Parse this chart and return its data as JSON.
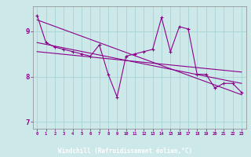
{
  "xlabel": "Windchill (Refroidissement éolien,°C)",
  "x": [
    0,
    1,
    2,
    3,
    4,
    5,
    6,
    7,
    8,
    9,
    10,
    11,
    12,
    13,
    14,
    15,
    16,
    17,
    18,
    19,
    20,
    21,
    22,
    23
  ],
  "line1": [
    9.35,
    8.75,
    8.65,
    8.6,
    8.55,
    8.5,
    8.45,
    8.7,
    8.05,
    7.55,
    8.45,
    8.5,
    8.55,
    8.6,
    9.3,
    8.55,
    9.1,
    9.05,
    8.05,
    8.05,
    7.75,
    7.85,
    7.85,
    7.65
  ],
  "trend1_x": [
    0,
    23
  ],
  "trend1_y": [
    9.25,
    7.6
  ],
  "trend2_x": [
    0,
    23
  ],
  "trend2_y": [
    8.75,
    7.85
  ],
  "trend3_x": [
    0,
    23
  ],
  "trend3_y": [
    8.55,
    8.1
  ],
  "line_color": "#8B008B",
  "bg_color": "#cce8e8",
  "grid_color": "#a8d4d4",
  "xlabel_bg": "#7b3f7b",
  "xlabel_fg": "#ffffff",
  "ylim": [
    6.85,
    9.55
  ],
  "yticks": [
    7,
    8,
    9
  ],
  "xticks": [
    0,
    1,
    2,
    3,
    4,
    5,
    6,
    7,
    8,
    9,
    10,
    11,
    12,
    13,
    14,
    15,
    16,
    17,
    18,
    19,
    20,
    21,
    22,
    23
  ]
}
